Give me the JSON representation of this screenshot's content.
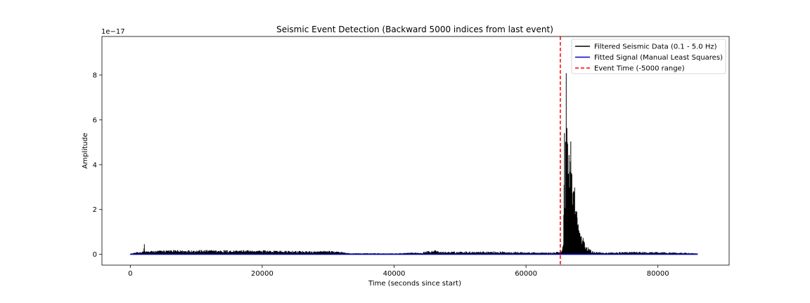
{
  "chart_data": {
    "type": "line",
    "title": "Seismic Event Detection (Backward 5000 indices from last event)",
    "xlabel": "Time (seconds since start)",
    "ylabel": "Amplitude",
    "y_offset_label": "1e−17",
    "xlim": [
      -4300,
      90800
    ],
    "ylim": [
      -0.48,
      9.72
    ],
    "xticks": [
      0,
      20000,
      40000,
      60000,
      80000
    ],
    "yticks": [
      0,
      2,
      4,
      6,
      8
    ],
    "grid": false,
    "legend_position": "top-right",
    "event_time": 65200,
    "series": [
      {
        "name": "Filtered Seismic Data (0.1 - 5.0 Hz)",
        "color": "#000000",
        "style": "solid",
        "envelope": [
          [
            0,
            0.03
          ],
          [
            1000,
            0.1
          ],
          [
            2000,
            0.14
          ],
          [
            2100,
            0.62
          ],
          [
            2200,
            0.14
          ],
          [
            5000,
            0.19
          ],
          [
            10000,
            0.2
          ],
          [
            20000,
            0.18
          ],
          [
            28000,
            0.14
          ],
          [
            30000,
            0.16
          ],
          [
            32000,
            0.12
          ],
          [
            33000,
            0.06
          ],
          [
            40000,
            0.05
          ],
          [
            44000,
            0.09
          ],
          [
            46000,
            0.2
          ],
          [
            47000,
            0.12
          ],
          [
            50000,
            0.13
          ],
          [
            56000,
            0.13
          ],
          [
            60000,
            0.1
          ],
          [
            64000,
            0.08
          ],
          [
            65300,
            0.15
          ],
          [
            65700,
            0.5
          ],
          [
            65800,
            6.7
          ],
          [
            65950,
            3.5
          ],
          [
            66050,
            9.3
          ],
          [
            66150,
            8.9
          ],
          [
            66300,
            6.0
          ],
          [
            66500,
            6.2
          ],
          [
            66700,
            5.8
          ],
          [
            67000,
            4.5
          ],
          [
            67300,
            3.5
          ],
          [
            67600,
            2.5
          ],
          [
            68000,
            1.4
          ],
          [
            68400,
            1.0
          ],
          [
            68800,
            0.6
          ],
          [
            69300,
            0.35
          ],
          [
            70000,
            0.15
          ],
          [
            72000,
            0.08
          ],
          [
            76000,
            0.12
          ],
          [
            80000,
            0.1
          ],
          [
            84000,
            0.08
          ],
          [
            86000,
            0.04
          ]
        ]
      },
      {
        "name": "Fitted Signal (Manual Least Squares)",
        "color": "#0000cc",
        "style": "solid",
        "points": [
          [
            0,
            0.01
          ],
          [
            86000,
            0.01
          ]
        ]
      },
      {
        "name": "Event Time (-5000 range)",
        "color": "#ff0000",
        "style": "dashed"
      }
    ]
  }
}
